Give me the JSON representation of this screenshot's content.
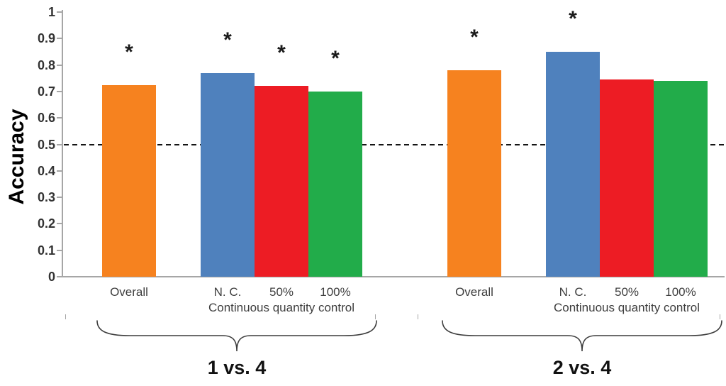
{
  "chart_data": {
    "type": "bar",
    "title": "",
    "ylabel": "Accuracy",
    "xlabel": "",
    "ylim": [
      0,
      1
    ],
    "ytick_step": 0.1,
    "yticklabels": [
      "0",
      "0.1",
      "0.2",
      "0.3",
      "0.4",
      "0.5",
      "0.6",
      "0.7",
      "0.8",
      "0.9",
      "1"
    ],
    "grid": false,
    "legend": false,
    "chance_line": 0.5,
    "significance_marker": "*",
    "bar_color_names": [
      "orange",
      "blue",
      "red",
      "green"
    ],
    "colors": [
      "#F6821F",
      "#4F81BD",
      "#ED1C24",
      "#22AC4A"
    ],
    "groups": [
      {
        "label": "1 vs. 4",
        "cluster_label": "Continuous quantity control",
        "categories": [
          "Overall",
          "N. C.",
          "50%",
          "100%"
        ],
        "values": [
          0.725,
          0.77,
          0.72,
          0.7
        ],
        "significant": [
          true,
          true,
          true,
          true
        ]
      },
      {
        "label": "2 vs. 4",
        "cluster_label": "Continuous quantity control",
        "categories": [
          "Overall",
          "N. C.",
          "50%",
          "100%"
        ],
        "values": [
          0.78,
          0.85,
          0.745,
          0.74
        ],
        "significant": [
          true,
          true,
          false,
          false
        ]
      }
    ]
  }
}
